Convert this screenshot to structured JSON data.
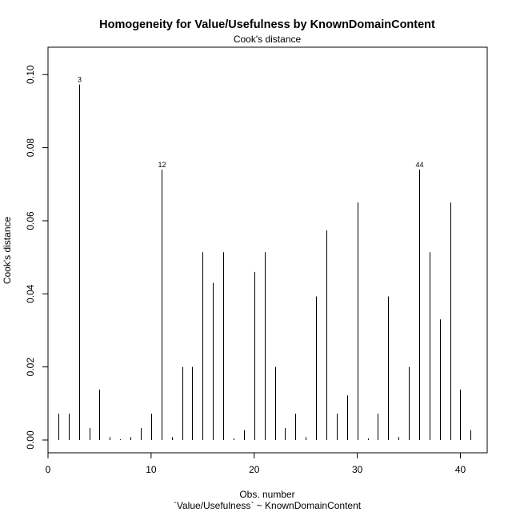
{
  "chart_data": {
    "type": "bar",
    "title": "Homogeneity for Value/Usefulness by KnownDomainContent",
    "subtitle": "Cook's distance",
    "xlabel": "Obs. number",
    "xlabel2": "`Value/Usefulness` ~ KnownDomainContent",
    "ylabel": "Cook's distance",
    "xlim": [
      0,
      42.6
    ],
    "ylim": [
      -0.0035,
      0.1075
    ],
    "xticks": [
      0,
      10,
      20,
      30,
      40
    ],
    "yticks": [
      0.0,
      0.02,
      0.04,
      0.06,
      0.08,
      0.1
    ],
    "ytick_labels": [
      "0.00",
      "0.02",
      "0.04",
      "0.06",
      "0.08",
      "0.10"
    ],
    "x": [
      1,
      2,
      3,
      4,
      5,
      6,
      7,
      8,
      9,
      10,
      11,
      12,
      13,
      14,
      15,
      16,
      17,
      18,
      19,
      20,
      21,
      22,
      23,
      24,
      25,
      26,
      27,
      28,
      29,
      30,
      31,
      32,
      33,
      34,
      35,
      36,
      37,
      38,
      39,
      40,
      41
    ],
    "values": [
      0.0072,
      0.0072,
      0.0973,
      0.0033,
      0.0138,
      0.0008,
      0.0002,
      0.0008,
      0.0033,
      0.0072,
      0.074,
      0.0008,
      0.02,
      0.02,
      0.0514,
      0.043,
      0.0514,
      0.0004,
      0.0027,
      0.046,
      0.0514,
      0.02,
      0.0033,
      0.0072,
      0.0008,
      0.0393,
      0.0574,
      0.0072,
      0.0122,
      0.065,
      0.0004,
      0.0072,
      0.0393,
      0.0008,
      0.02,
      0.074,
      0.0514,
      0.033,
      0.065,
      0.0138,
      0.0027
    ],
    "point_labels": [
      {
        "index": 3,
        "label": "3"
      },
      {
        "index": 11,
        "label": "12"
      },
      {
        "index": 36,
        "label": "44"
      }
    ],
    "grid": false,
    "legend": "none"
  }
}
